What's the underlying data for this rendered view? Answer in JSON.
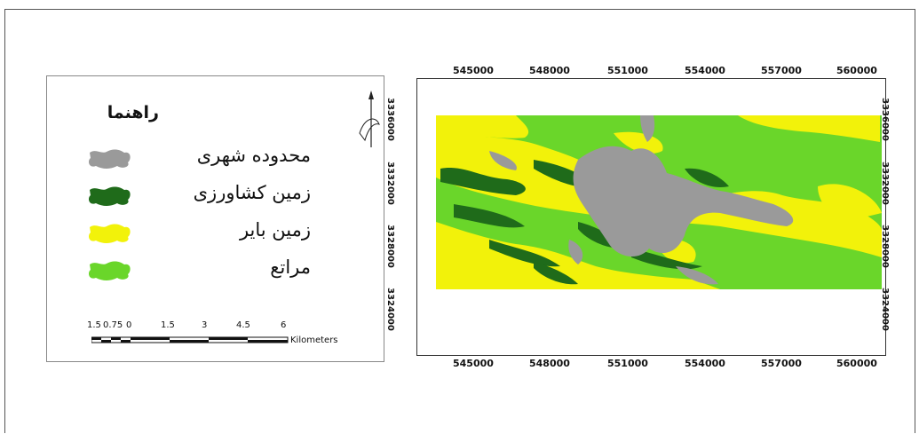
{
  "legend": {
    "title": "راهنما",
    "items": [
      {
        "label": "محدوده شهری",
        "color": "#9a9a9a"
      },
      {
        "label": "زمین کشاورزی",
        "color": "#1f6b1a"
      },
      {
        "label": "زمین بایر",
        "color": "#f2f20a"
      },
      {
        "label": "مراتع",
        "color": "#6ad62a"
      }
    ],
    "north_symbol": "N"
  },
  "scalebar": {
    "ticks": [
      "1.5",
      "0.75",
      "0",
      "1.5",
      "3",
      "4.5",
      "6"
    ],
    "unit": "Kilometers"
  },
  "map": {
    "x_ticks": [
      "545000",
      "548000",
      "551000",
      "554000",
      "557000",
      "560000"
    ],
    "y_ticks": [
      "3336000",
      "3332000",
      "3328000",
      "3324000"
    ],
    "colors": {
      "urban": "#9a9a9a",
      "agriculture": "#1f6b1a",
      "barren": "#f2f20a",
      "rangeland": "#6ad62a"
    }
  }
}
